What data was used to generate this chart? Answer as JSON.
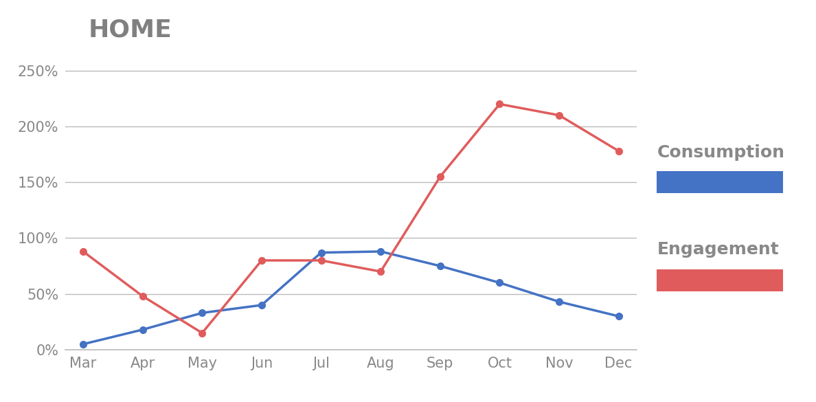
{
  "title": "HOME",
  "months": [
    "Mar",
    "Apr",
    "May",
    "Jun",
    "Jul",
    "Aug",
    "Sep",
    "Oct",
    "Nov",
    "Dec"
  ],
  "consumption": [
    5,
    18,
    33,
    40,
    87,
    88,
    75,
    60,
    43,
    30
  ],
  "engagement": [
    88,
    48,
    15,
    80,
    80,
    70,
    155,
    220,
    210,
    178
  ],
  "consumption_color": "#4472C4",
  "engagement_color": "#E05C5C",
  "title_color": "#808080",
  "title_fontsize": 26,
  "tick_fontsize": 15,
  "legend_label_fontsize": 18,
  "ylim": [
    0,
    270
  ],
  "yticks": [
    0,
    50,
    100,
    150,
    200,
    250
  ],
  "background_color": "#ffffff",
  "grid_color": "#bbbbbb",
  "line_width": 2.5,
  "marker_size": 7
}
